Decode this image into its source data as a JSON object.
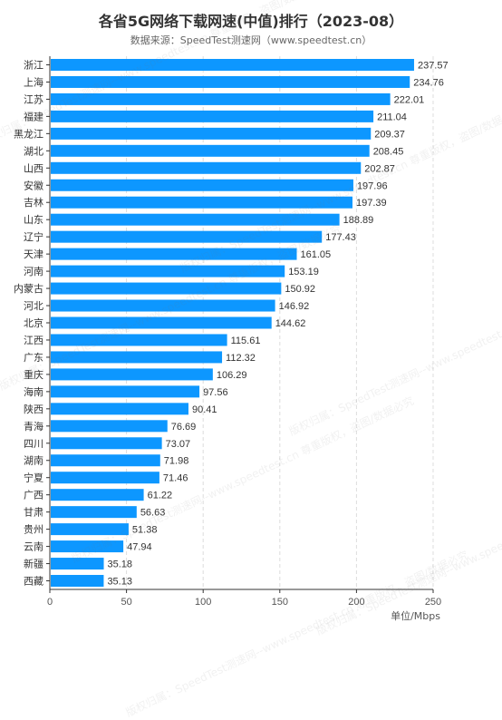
{
  "page": {
    "title": "各省5G网络下载网速(中值)排行（2023-08）",
    "subtitle": "数据来源：SpeedTest测速网（www.speedtest.cn）",
    "unit_label": "单位/Mbps",
    "watermark_text": "版权归属：SpeedTest测速网--www.speedtest.cn 尊重版权，盗图/数据必究"
  },
  "chart_data": {
    "type": "bar",
    "orientation": "horizontal",
    "title": "各省5G网络下载网速(中值)排行（2023-08）",
    "categories": [
      "浙江",
      "上海",
      "江苏",
      "福建",
      "黑龙江",
      "湖北",
      "山西",
      "安徽",
      "吉林",
      "山东",
      "辽宁",
      "天津",
      "河南",
      "内蒙古",
      "河北",
      "北京",
      "江西",
      "广东",
      "重庆",
      "海南",
      "陕西",
      "青海",
      "四川",
      "湖南",
      "宁夏",
      "广西",
      "甘肃",
      "贵州",
      "云南",
      "新疆",
      "西藏"
    ],
    "values": [
      237.57,
      234.76,
      222.01,
      211.04,
      209.37,
      208.45,
      202.87,
      197.96,
      197.39,
      188.89,
      177.43,
      161.05,
      153.19,
      150.92,
      146.92,
      144.62,
      115.61,
      112.32,
      106.29,
      97.56,
      90.41,
      76.69,
      73.07,
      71.98,
      71.46,
      61.22,
      56.63,
      51.38,
      47.94,
      35.18,
      35.13
    ],
    "value_labels": [
      "237.57",
      "234.76",
      "222.01",
      "211.04",
      "209.37",
      "208.45",
      "202.87",
      "197.96",
      "197.39",
      "188.89",
      "177.43",
      "161.05",
      "153.19",
      "150.92",
      "146.92",
      "144.62",
      "115.61",
      "112.32",
      "106.29",
      "97.56",
      "90.41",
      "76.69",
      "73.07",
      "71.98",
      "71.46",
      "61.22",
      "56.63",
      "51.38",
      "47.94",
      "35.18",
      "35.13"
    ],
    "xlim": [
      0,
      250
    ],
    "x_ticks": [
      "0",
      "50",
      "100",
      "150",
      "200",
      "250"
    ],
    "xlabel": "单位/Mbps",
    "grid": "vertical dashed",
    "colors": {
      "bar": "#0d97ff",
      "axis": "#333333",
      "grid": "#dddddd",
      "label": "#333333"
    }
  }
}
